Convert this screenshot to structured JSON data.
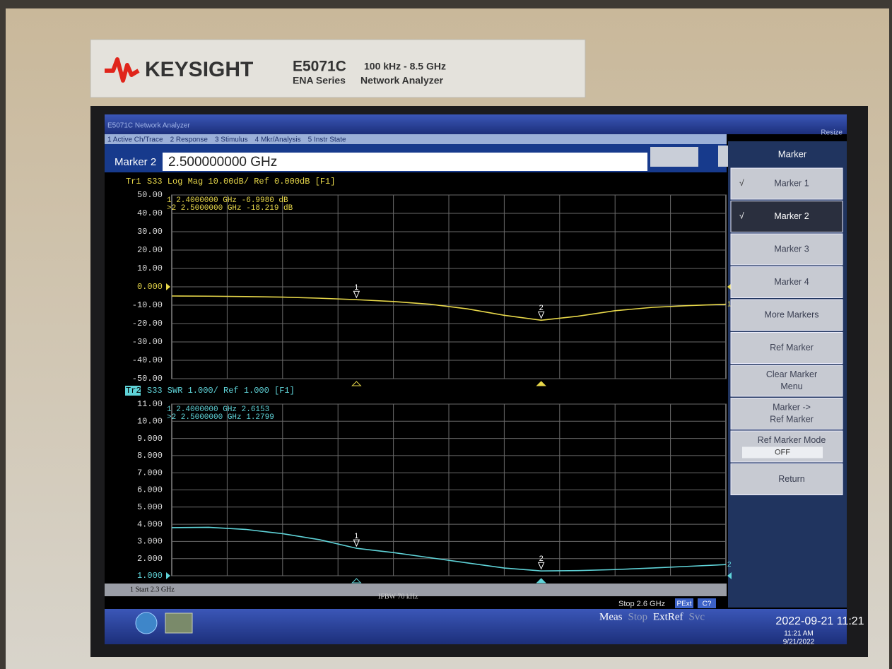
{
  "bezel": {
    "brand": "KEYSIGHT",
    "model": "E5071C",
    "range": "100 kHz - 8.5 GHz",
    "series": "ENA Series",
    "product": "Network Analyzer"
  },
  "window": {
    "title": "E5071C Network Analyzer",
    "resize": "Resize",
    "menu": [
      "1 Active Ch/Trace",
      "2 Response",
      "3 Stimulus",
      "4 Mkr/Analysis",
      "5 Instr State"
    ]
  },
  "entry": {
    "label": "Marker 2",
    "value": "2.500000000 GHz"
  },
  "traces": [
    {
      "tag": "Tr1",
      "header": "S33 Log Mag 10.00dB/ Ref 0.000dB [F1]",
      "color": "#e8d84a",
      "readouts": [
        "1  2.4000000 GHz -6.9980 dB",
        ">2  2.5000000 GHz -18.219 dB"
      ],
      "xlim": [
        2.3,
        2.6
      ],
      "ylim": [
        -50,
        50
      ],
      "yticks": [
        {
          "value": 50,
          "label": "50.00"
        },
        {
          "value": 40,
          "label": "40.00"
        },
        {
          "value": 30,
          "label": "30.00"
        },
        {
          "value": 20,
          "label": "20.00"
        },
        {
          "value": 10,
          "label": "10.00"
        },
        {
          "value": 0,
          "label": "0.000"
        },
        {
          "value": -10,
          "label": "-10.00"
        },
        {
          "value": -20,
          "label": "-20.00"
        },
        {
          "value": -30,
          "label": "-30.00"
        },
        {
          "value": -40,
          "label": "-40.00"
        },
        {
          "value": -50,
          "label": "-50.00"
        }
      ],
      "ref": 0,
      "x": [
        2.3,
        2.32,
        2.34,
        2.36,
        2.38,
        2.4,
        2.42,
        2.44,
        2.46,
        2.48,
        2.5,
        2.52,
        2.54,
        2.56,
        2.58,
        2.6
      ],
      "values": [
        -5,
        -5.1,
        -5.3,
        -5.6,
        -6.2,
        -7,
        -8,
        -9.5,
        -12,
        -15.5,
        -18.2,
        -16,
        -13,
        -11.2,
        -10.2,
        -9.5
      ],
      "markers": [
        {
          "x": 2.4,
          "y": -7,
          "label": "1"
        },
        {
          "x": 2.5,
          "y": -18.2,
          "label": "2"
        }
      ],
      "end_label": "1"
    },
    {
      "tag": "Tr2",
      "header": "S33 SWR 1.000/ Ref 1.000 [F1]",
      "color": "#5fd3d8",
      "readouts": [
        "1  2.4000000 GHz  2.6153",
        ">2  2.5000000 GHz  1.2799"
      ],
      "xlim": [
        2.3,
        2.6
      ],
      "ylim": [
        1,
        11
      ],
      "yticks": [
        {
          "value": 11,
          "label": "11.00"
        },
        {
          "value": 10,
          "label": "10.00"
        },
        {
          "value": 9,
          "label": "9.000"
        },
        {
          "value": 8,
          "label": "8.000"
        },
        {
          "value": 7,
          "label": "7.000"
        },
        {
          "value": 6,
          "label": "6.000"
        },
        {
          "value": 5,
          "label": "5.000"
        },
        {
          "value": 4,
          "label": "4.000"
        },
        {
          "value": 3,
          "label": "3.000"
        },
        {
          "value": 2,
          "label": "2.000"
        },
        {
          "value": 1,
          "label": "1.000"
        }
      ],
      "ref": 1,
      "x": [
        2.3,
        2.32,
        2.34,
        2.36,
        2.38,
        2.4,
        2.42,
        2.44,
        2.46,
        2.48,
        2.5,
        2.52,
        2.54,
        2.56,
        2.58,
        2.6
      ],
      "values": [
        3.8,
        3.82,
        3.7,
        3.45,
        3.1,
        2.6,
        2.35,
        2.05,
        1.75,
        1.45,
        1.28,
        1.3,
        1.36,
        1.45,
        1.55,
        1.65
      ],
      "markers": [
        {
          "x": 2.4,
          "y": 2.6,
          "label": "1"
        },
        {
          "x": 2.5,
          "y": 1.28,
          "label": "2"
        }
      ],
      "end_label": "2"
    }
  ],
  "softkeys": {
    "title": "Marker",
    "active": 1,
    "items": [
      {
        "check": "√",
        "lines": [
          "Marker 1"
        ]
      },
      {
        "check": "√",
        "lines": [
          "Marker 2"
        ]
      },
      {
        "lines": [
          "Marker 3"
        ]
      },
      {
        "lines": [
          "Marker 4"
        ]
      },
      {
        "lines": [
          "More Markers"
        ]
      },
      {
        "lines": [
          "Ref Marker"
        ]
      },
      {
        "lines": [
          "Clear Marker",
          "Menu"
        ]
      },
      {
        "lines": [
          "Marker ->",
          "Ref Marker"
        ]
      },
      {
        "lines": [
          "Ref Marker Mode"
        ],
        "value": "OFF"
      },
      {
        "lines": [
          "Return"
        ]
      }
    ]
  },
  "status": {
    "start": "1 Start 2.3 GHz",
    "ifbw": "IFBW 70 kHz",
    "stop": "Stop 2.6 GHz",
    "flags": [
      "PExt",
      "C?"
    ],
    "modes": [
      "Meas",
      "Stop",
      "ExtRef",
      "Svc"
    ],
    "datetime": "2022-09-21 11:21"
  },
  "taskbar": {
    "time": "11:21 AM",
    "date": "9/21/2022"
  }
}
